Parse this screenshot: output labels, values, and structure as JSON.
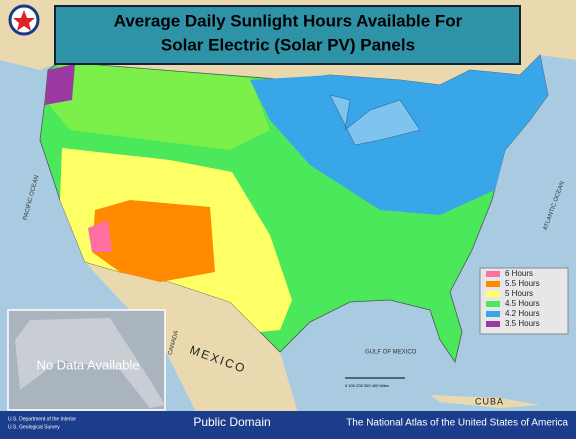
{
  "map": {
    "title": [
      "Average Daily Sunlight Hours Available For",
      "Solar Electric (Solar PV) Panels"
    ],
    "legend": [
      {
        "label": "6 Hours",
        "color": "#ff6fa0"
      },
      {
        "label": "5.5 Hours",
        "color": "#ff8a00"
      },
      {
        "label": "5 Hours",
        "color": "#ffff66"
      },
      {
        "label": "4.5 Hours",
        "color": "#4ae85a"
      },
      {
        "label": "4.2 Hours",
        "color": "#3aa6ea"
      },
      {
        "label": "3.5 Hours",
        "color": "#9a3aa0"
      }
    ],
    "labels": {
      "pacific": "PACIFIC OCEAN",
      "atlantic": "ATLANTIC OCEAN",
      "gulf": "GULF OF MEXICO",
      "mexico": "MEXICO",
      "cuba": "CUBA",
      "canada": "CANADA",
      "alaska": "No Data Available",
      "scale": "0 100 200 300 400 Miles"
    },
    "footer": {
      "agency": [
        "U.S. Department of the Interior",
        "U.S. Geological Survey"
      ],
      "license": "Public Domain",
      "atlas": "The National Atlas of the United States of America"
    }
  }
}
